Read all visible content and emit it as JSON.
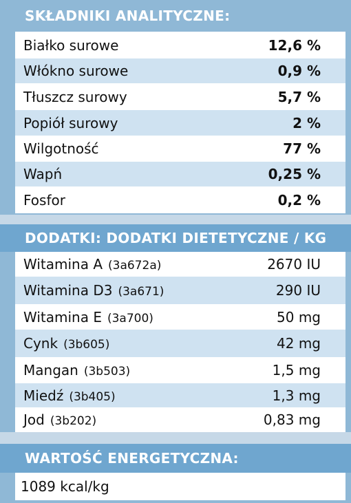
{
  "sections": {
    "analytical": {
      "title": "SKŁADNIKI ANALITYCZNE:",
      "rows": [
        {
          "name": "Białko surowe",
          "value": "12,6 %"
        },
        {
          "name": "Włókno surowe",
          "value": "0,9 %"
        },
        {
          "name": "Tłuszcz surowy",
          "value": "5,7 %"
        },
        {
          "name": "Popiół surowy",
          "value": "2 %"
        },
        {
          "name": "Wilgotność",
          "value": "77 %"
        },
        {
          "name": "Wapń",
          "value": "0,25 %"
        },
        {
          "name": "Fosfor",
          "value": "0,2 %"
        }
      ]
    },
    "additives": {
      "title": "DODATKI: DODATKI DIETETYCZNE / KG",
      "rows": [
        {
          "name": "Witamina A",
          "code": "(3a672a)",
          "value": "2670 IU"
        },
        {
          "name": "Witamina D3",
          "code": "(3a671)",
          "value": "290 IU"
        },
        {
          "name": "Witamina E",
          "code": "(3a700)",
          "value": "50 mg"
        },
        {
          "name": "Cynk",
          "code": "(3b605)",
          "value": "42 mg"
        },
        {
          "name": "Mangan",
          "code": "(3b503)",
          "value": "1,5 mg"
        },
        {
          "name": "Miedź",
          "code": "(3b405)",
          "value": "1,3 mg"
        },
        {
          "name": "Jod",
          "code": "(3b202)",
          "value": "0,83 mg"
        }
      ]
    },
    "energy": {
      "title": "WARTOŚĆ ENERGETYCZNA:",
      "value": "1089 kcal/kg"
    }
  },
  "colors": {
    "header_top": "#8fb8d6",
    "header": "#6fa6cf",
    "row_alt": "#cfe2f1",
    "row": "#ffffff"
  }
}
